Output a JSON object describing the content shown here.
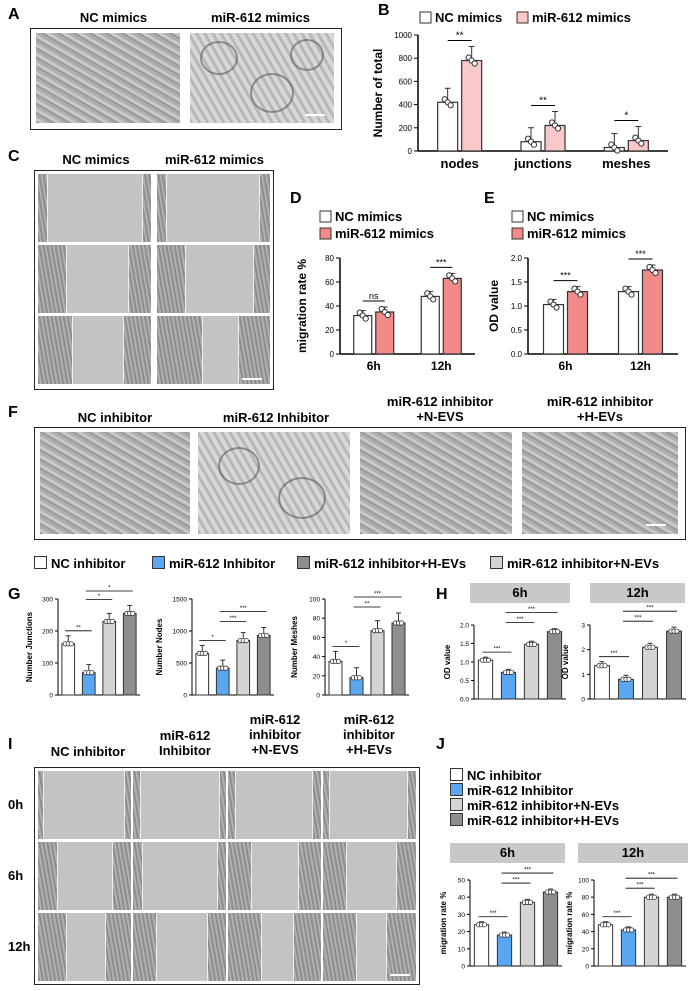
{
  "panels": {
    "A": {
      "label": "A",
      "headers": [
        "NC mimics",
        "miR-612 mimics"
      ]
    },
    "B": {
      "label": "B"
    },
    "C": {
      "label": "C",
      "headers": [
        "NC mimics",
        "miR-612 mimics"
      ]
    },
    "D": {
      "label": "D"
    },
    "E": {
      "label": "E"
    },
    "F": {
      "label": "F",
      "headers": [
        "NC inhibitor",
        "miR-612 Inhibitor",
        "miR-612 inhibitor\n+N-EVS",
        "miR-612 inhibitor\n+H-EVs"
      ]
    },
    "G": {
      "label": "G"
    },
    "H": {
      "label": "H",
      "bars": [
        "6h",
        "12h"
      ]
    },
    "I": {
      "label": "I",
      "headers": [
        "NC inhibitor",
        "miR-612\nInhibitor",
        "miR-612\ninhibitor\n+N-EVS",
        "miR-612\ninhibitor\n+H-EVs"
      ],
      "rows": [
        "0h",
        "6h",
        "12h"
      ]
    },
    "J": {
      "label": "J",
      "bars": [
        "6h",
        "12h"
      ]
    }
  },
  "legend_FG": [
    "NC inhibitor",
    "miR-612 Inhibitor",
    "miR-612 inhibitor+H-EVs",
    "miR-612 inhibitor+N-EVs"
  ],
  "legend_J": [
    "NC inhibitor",
    "miR-612 Inhibitor",
    "miR-612 inhibitor+N-EVs",
    "miR-612 inhibitor+H-EVs"
  ],
  "colors": {
    "nc": "#ffffff",
    "mimic": "#f9c9c9",
    "mimicD": "#f28a8a",
    "inh": "#5aa6f0",
    "nev": "#d4d4d4",
    "hev": "#8e8e8e"
  },
  "chart_data": [
    {
      "id": "B",
      "type": "bar",
      "ylabel": "Number of total",
      "categories": [
        "nodes",
        "junctions",
        "meshes"
      ],
      "series": [
        {
          "name": "NC mimics",
          "values": [
            420,
            80,
            30
          ]
        },
        {
          "name": "miR-612 mimics",
          "values": [
            780,
            220,
            90
          ]
        }
      ],
      "ylim": [
        0,
        1000
      ],
      "yticks": [
        0,
        200,
        400,
        600,
        800,
        1000
      ],
      "sig": [
        "**",
        "**",
        "*"
      ],
      "legend": [
        "NC mimics",
        "miR-612 mimics"
      ]
    },
    {
      "id": "D",
      "type": "bar",
      "ylabel": "migration rate %",
      "categories": [
        "6h",
        "12h"
      ],
      "series": [
        {
          "name": "NC mimics",
          "values": [
            32,
            48
          ]
        },
        {
          "name": "miR-612 mimics",
          "values": [
            35,
            63
          ]
        }
      ],
      "ylim": [
        0,
        80
      ],
      "yticks": [
        0,
        20,
        40,
        60,
        80
      ],
      "sig": [
        "ns",
        "***"
      ],
      "legend": [
        "NC mimics",
        "miR-612 mimics"
      ]
    },
    {
      "id": "E",
      "type": "bar",
      "ylabel": "OD value",
      "categories": [
        "6h",
        "12h"
      ],
      "series": [
        {
          "name": "NC mimics",
          "values": [
            1.03,
            1.3
          ]
        },
        {
          "name": "miR-612 mimics",
          "values": [
            1.3,
            1.75
          ]
        }
      ],
      "ylim": [
        0,
        2.0
      ],
      "yticks": [
        "0.0",
        "0.5",
        "1.0",
        "1.5",
        "2.0"
      ],
      "sig": [
        "***",
        "***"
      ],
      "legend": [
        "NC mimics",
        "miR-612 mimics"
      ]
    },
    {
      "id": "G1",
      "type": "bar",
      "ylabel": "Number Junctions",
      "values": [
        160,
        70,
        230,
        255
      ],
      "ylim": [
        0,
        300
      ],
      "yticks": [
        0,
        100,
        200,
        300
      ],
      "sig": [
        [
          "**",
          0,
          1
        ],
        [
          "*",
          1,
          2
        ],
        [
          "*",
          1,
          3
        ]
      ]
    },
    {
      "id": "G2",
      "type": "bar",
      "ylabel": "Number Nodes",
      "values": [
        650,
        420,
        850,
        930
      ],
      "ylim": [
        0,
        1500
      ],
      "yticks": [
        0,
        500,
        1000,
        1500
      ],
      "sig": [
        [
          "*",
          0,
          1
        ],
        [
          "***",
          1,
          2
        ],
        [
          "***",
          1,
          3
        ]
      ]
    },
    {
      "id": "G3",
      "type": "bar",
      "ylabel": "Number Meshes",
      "values": [
        35,
        18,
        67,
        75
      ],
      "ylim": [
        0,
        100
      ],
      "yticks": [
        0,
        20,
        40,
        60,
        80,
        100
      ],
      "sig": [
        [
          "*",
          0,
          1
        ],
        [
          "**",
          1,
          2
        ],
        [
          "***",
          1,
          3
        ]
      ]
    },
    {
      "id": "H1",
      "type": "bar",
      "ylabel": "OD value",
      "values": [
        1.05,
        0.72,
        1.48,
        1.82
      ],
      "ylim": [
        0,
        2.0
      ],
      "yticks": [
        "0.0",
        "0.5",
        "1.0",
        "1.5",
        "2.0"
      ],
      "sig": [
        [
          "***",
          0,
          1
        ],
        [
          "***",
          1,
          2
        ],
        [
          "***",
          1,
          3
        ]
      ]
    },
    {
      "id": "H2",
      "type": "bar",
      "ylabel": "OD value",
      "values": [
        1.35,
        0.8,
        2.1,
        2.75
      ],
      "ylim": [
        0,
        3
      ],
      "yticks": [
        0,
        1,
        2,
        3
      ],
      "sig": [
        [
          "***",
          0,
          1
        ],
        [
          "***",
          1,
          2
        ],
        [
          "***",
          1,
          3
        ]
      ]
    },
    {
      "id": "J1",
      "type": "bar",
      "ylabel": "migration rate %",
      "values": [
        24,
        18,
        37,
        43
      ],
      "ylim": [
        0,
        50
      ],
      "yticks": [
        0,
        10,
        20,
        30,
        40,
        50
      ],
      "sig": [
        [
          "***",
          0,
          1
        ],
        [
          "***",
          1,
          2
        ],
        [
          "***",
          1,
          3
        ]
      ]
    },
    {
      "id": "J2",
      "type": "bar",
      "ylabel": "migration rate %",
      "values": [
        48,
        42,
        80,
        80
      ],
      "ylim": [
        0,
        100
      ],
      "yticks": [
        0,
        20,
        40,
        60,
        80,
        100
      ],
      "sig": [
        [
          "***",
          0,
          1
        ],
        [
          "***",
          1,
          2
        ],
        [
          "***",
          1,
          3
        ]
      ]
    }
  ]
}
